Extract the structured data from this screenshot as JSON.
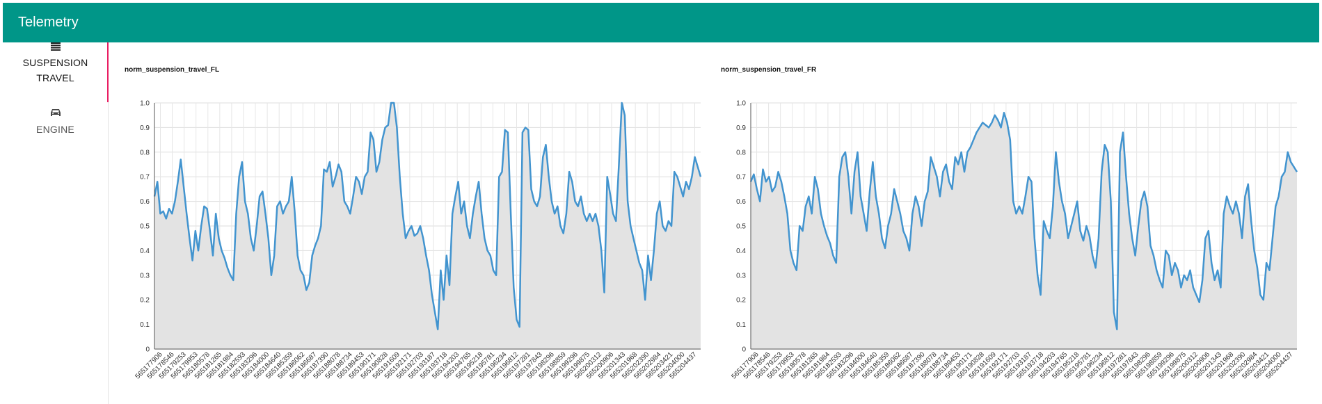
{
  "header": {
    "title": "Telemetry"
  },
  "sidebar": {
    "items": [
      {
        "label_line1": "SUSPENSION",
        "label_line2": "TRAVEL",
        "icon": "list-icon",
        "active": true
      },
      {
        "label_line1": "ENGINE",
        "label_line2": "",
        "icon": "car-icon",
        "active": false
      }
    ]
  },
  "chart_data": [
    {
      "type": "area",
      "title": "norm_suspension_travel_FL",
      "ylim": [
        0,
        1.0
      ],
      "yticks": [
        "0",
        "0.1",
        "0.2",
        "0.3",
        "0.4",
        "0.5",
        "0.6",
        "0.7",
        "0.8",
        "0.9",
        "1.0"
      ],
      "xticks": [
        "565177906",
        "565178546",
        "565179253",
        "565179953",
        "565180578",
        "565181265",
        "565181984",
        "565182593",
        "565183296",
        "565184000",
        "565184640",
        "565185359",
        "565186062",
        "565186687",
        "565187390",
        "565188078",
        "565188734",
        "565189453",
        "565190171",
        "565190828",
        "565191609",
        "565192171",
        "565192703",
        "565193187",
        "565193718",
        "565194203",
        "565194765",
        "565195218",
        "565195781",
        "565196234",
        "565196812",
        "565197281",
        "565197843",
        "565198296",
        "565198859",
        "565199296",
        "565199875",
        "565200312",
        "565200906",
        "565201343",
        "565201968",
        "565202390",
        "565202984",
        "565203421",
        "565204000",
        "565204437"
      ],
      "grid": true,
      "line_color": "#4294cf",
      "fill_color": "#e3e3e3",
      "values": [
        0.62,
        0.68,
        0.55,
        0.56,
        0.53,
        0.57,
        0.55,
        0.6,
        0.68,
        0.77,
        0.66,
        0.55,
        0.45,
        0.36,
        0.48,
        0.4,
        0.5,
        0.58,
        0.57,
        0.48,
        0.38,
        0.55,
        0.45,
        0.4,
        0.37,
        0.33,
        0.3,
        0.28,
        0.55,
        0.7,
        0.76,
        0.6,
        0.55,
        0.45,
        0.4,
        0.5,
        0.62,
        0.64,
        0.55,
        0.45,
        0.3,
        0.38,
        0.58,
        0.6,
        0.55,
        0.58,
        0.6,
        0.7,
        0.56,
        0.38,
        0.32,
        0.3,
        0.24,
        0.27,
        0.38,
        0.42,
        0.45,
        0.5,
        0.73,
        0.72,
        0.76,
        0.66,
        0.7,
        0.75,
        0.72,
        0.6,
        0.58,
        0.55,
        0.62,
        0.7,
        0.68,
        0.63,
        0.7,
        0.72,
        0.88,
        0.85,
        0.72,
        0.76,
        0.85,
        0.9,
        0.91,
        1.0,
        1.0,
        0.9,
        0.7,
        0.55,
        0.45,
        0.48,
        0.5,
        0.46,
        0.47,
        0.5,
        0.45,
        0.38,
        0.32,
        0.22,
        0.15,
        0.08,
        0.32,
        0.2,
        0.38,
        0.26,
        0.55,
        0.62,
        0.68,
        0.55,
        0.6,
        0.5,
        0.45,
        0.55,
        0.62,
        0.68,
        0.55,
        0.45,
        0.4,
        0.38,
        0.32,
        0.3,
        0.7,
        0.72,
        0.89,
        0.88,
        0.55,
        0.25,
        0.12,
        0.09,
        0.88,
        0.9,
        0.89,
        0.65,
        0.6,
        0.58,
        0.62,
        0.78,
        0.83,
        0.7,
        0.6,
        0.55,
        0.58,
        0.5,
        0.47,
        0.55,
        0.72,
        0.68,
        0.6,
        0.58,
        0.62,
        0.55,
        0.52,
        0.55,
        0.52,
        0.55,
        0.5,
        0.4,
        0.23,
        0.7,
        0.63,
        0.55,
        0.52,
        0.75,
        1.0,
        0.95,
        0.6,
        0.5,
        0.45,
        0.4,
        0.35,
        0.32,
        0.2,
        0.38,
        0.28,
        0.4,
        0.55,
        0.6,
        0.5,
        0.48,
        0.52,
        0.5,
        0.72,
        0.7,
        0.66,
        0.62,
        0.68,
        0.65,
        0.7,
        0.78,
        0.74,
        0.7
      ]
    },
    {
      "type": "area",
      "title": "norm_suspension_travel_FR",
      "ylim": [
        0,
        1.0
      ],
      "yticks": [
        "0",
        "0.1",
        "0.2",
        "0.3",
        "0.4",
        "0.5",
        "0.6",
        "0.7",
        "0.8",
        "0.9",
        "1.0"
      ],
      "xticks": [
        "565177906",
        "565178546",
        "565179253",
        "565179953",
        "565180578",
        "565181265",
        "565181984",
        "565182593",
        "565183296",
        "565184000",
        "565184640",
        "565185359",
        "565186062",
        "565186687",
        "565187390",
        "565188078",
        "565188734",
        "565189453",
        "565190171",
        "565190828",
        "565191609",
        "565192171",
        "565192703",
        "565193187",
        "565193718",
        "565194203",
        "565194765",
        "565195218",
        "565195781",
        "565196234",
        "565196812",
        "565197281",
        "565197843",
        "565198296",
        "565198859",
        "565199296",
        "565199875",
        "565200312",
        "565200906",
        "565201343",
        "565201968",
        "565202390",
        "565202984",
        "565203421",
        "565204000",
        "565204437"
      ],
      "grid": true,
      "line_color": "#4294cf",
      "fill_color": "#e3e3e3",
      "values": [
        0.68,
        0.71,
        0.65,
        0.6,
        0.73,
        0.68,
        0.7,
        0.64,
        0.66,
        0.72,
        0.68,
        0.62,
        0.55,
        0.4,
        0.35,
        0.32,
        0.5,
        0.48,
        0.58,
        0.62,
        0.55,
        0.7,
        0.65,
        0.55,
        0.5,
        0.46,
        0.43,
        0.38,
        0.35,
        0.7,
        0.78,
        0.8,
        0.7,
        0.55,
        0.72,
        0.8,
        0.62,
        0.55,
        0.48,
        0.64,
        0.76,
        0.62,
        0.55,
        0.45,
        0.41,
        0.5,
        0.55,
        0.65,
        0.6,
        0.55,
        0.48,
        0.45,
        0.4,
        0.55,
        0.62,
        0.58,
        0.5,
        0.6,
        0.64,
        0.78,
        0.74,
        0.7,
        0.62,
        0.72,
        0.75,
        0.68,
        0.65,
        0.78,
        0.75,
        0.8,
        0.72,
        0.8,
        0.82,
        0.85,
        0.88,
        0.9,
        0.92,
        0.91,
        0.9,
        0.92,
        0.95,
        0.93,
        0.9,
        0.96,
        0.92,
        0.85,
        0.6,
        0.55,
        0.58,
        0.55,
        0.62,
        0.7,
        0.68,
        0.45,
        0.3,
        0.22,
        0.52,
        0.48,
        0.45,
        0.58,
        0.8,
        0.68,
        0.6,
        0.55,
        0.45,
        0.5,
        0.55,
        0.6,
        0.48,
        0.44,
        0.5,
        0.46,
        0.38,
        0.33,
        0.45,
        0.72,
        0.83,
        0.8,
        0.6,
        0.15,
        0.08,
        0.8,
        0.88,
        0.7,
        0.55,
        0.45,
        0.38,
        0.5,
        0.6,
        0.64,
        0.58,
        0.42,
        0.38,
        0.32,
        0.28,
        0.25,
        0.4,
        0.38,
        0.3,
        0.35,
        0.32,
        0.25,
        0.3,
        0.28,
        0.32,
        0.25,
        0.22,
        0.19,
        0.28,
        0.45,
        0.48,
        0.35,
        0.28,
        0.32,
        0.25,
        0.55,
        0.62,
        0.58,
        0.55,
        0.6,
        0.55,
        0.45,
        0.62,
        0.67,
        0.52,
        0.4,
        0.33,
        0.22,
        0.2,
        0.35,
        0.32,
        0.45,
        0.58,
        0.62,
        0.7,
        0.72,
        0.8,
        0.76,
        0.74,
        0.72
      ]
    }
  ]
}
